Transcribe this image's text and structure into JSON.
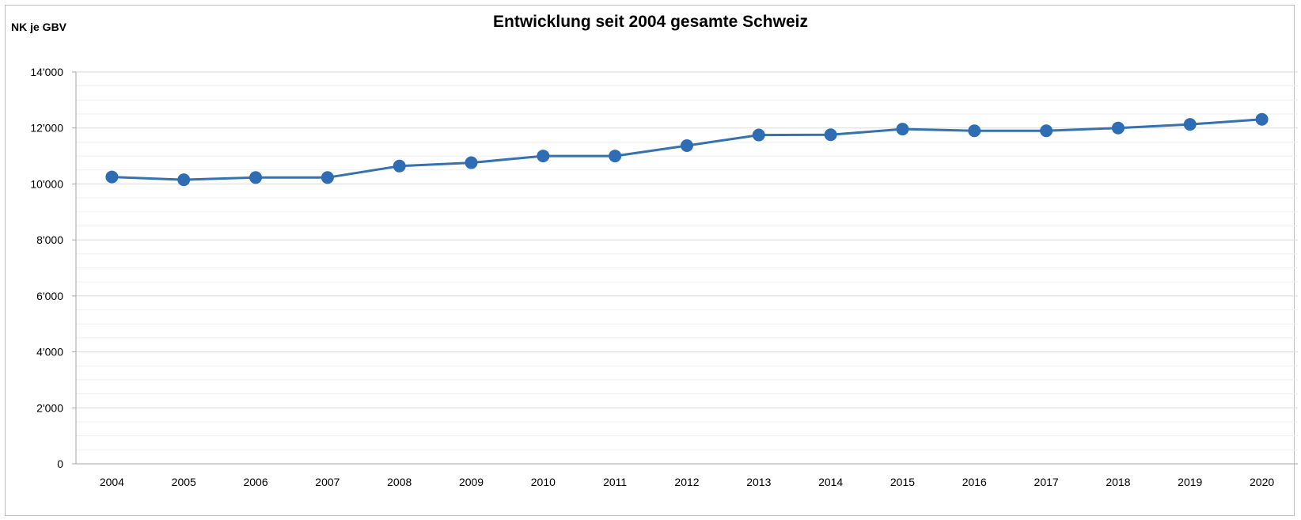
{
  "chart_data": {
    "type": "line",
    "title": "Entwicklung seit 2004 gesamte Schweiz",
    "ylabel": "NK je GBV",
    "xlabel": "",
    "categories": [
      "2004",
      "2005",
      "2006",
      "2007",
      "2008",
      "2009",
      "2010",
      "2011",
      "2012",
      "2013",
      "2014",
      "2015",
      "2016",
      "2017",
      "2018",
      "2019",
      "2020"
    ],
    "series": [
      {
        "values": [
          10250,
          10150,
          10230,
          10230,
          10640,
          10760,
          11000,
          11000,
          11370,
          11750,
          11760,
          11960,
          11900,
          11900,
          12000,
          12130,
          12310
        ]
      }
    ],
    "ylim": [
      0,
      14000
    ],
    "yticks": [
      0,
      2000,
      4000,
      6000,
      8000,
      10000,
      12000,
      14000
    ],
    "ytick_labels": [
      "0",
      "2'000",
      "4'000",
      "6'000",
      "8'000",
      "10'000",
      "12'000",
      "14'000"
    ],
    "grid": true,
    "minor_grid": true,
    "legend": "none",
    "colors": {
      "line": "#3472B0",
      "marker": "#2E6DB4",
      "major_grid": "#d9d9d9",
      "minor_grid": "#efefef",
      "axis": "#a6a6a6"
    }
  }
}
